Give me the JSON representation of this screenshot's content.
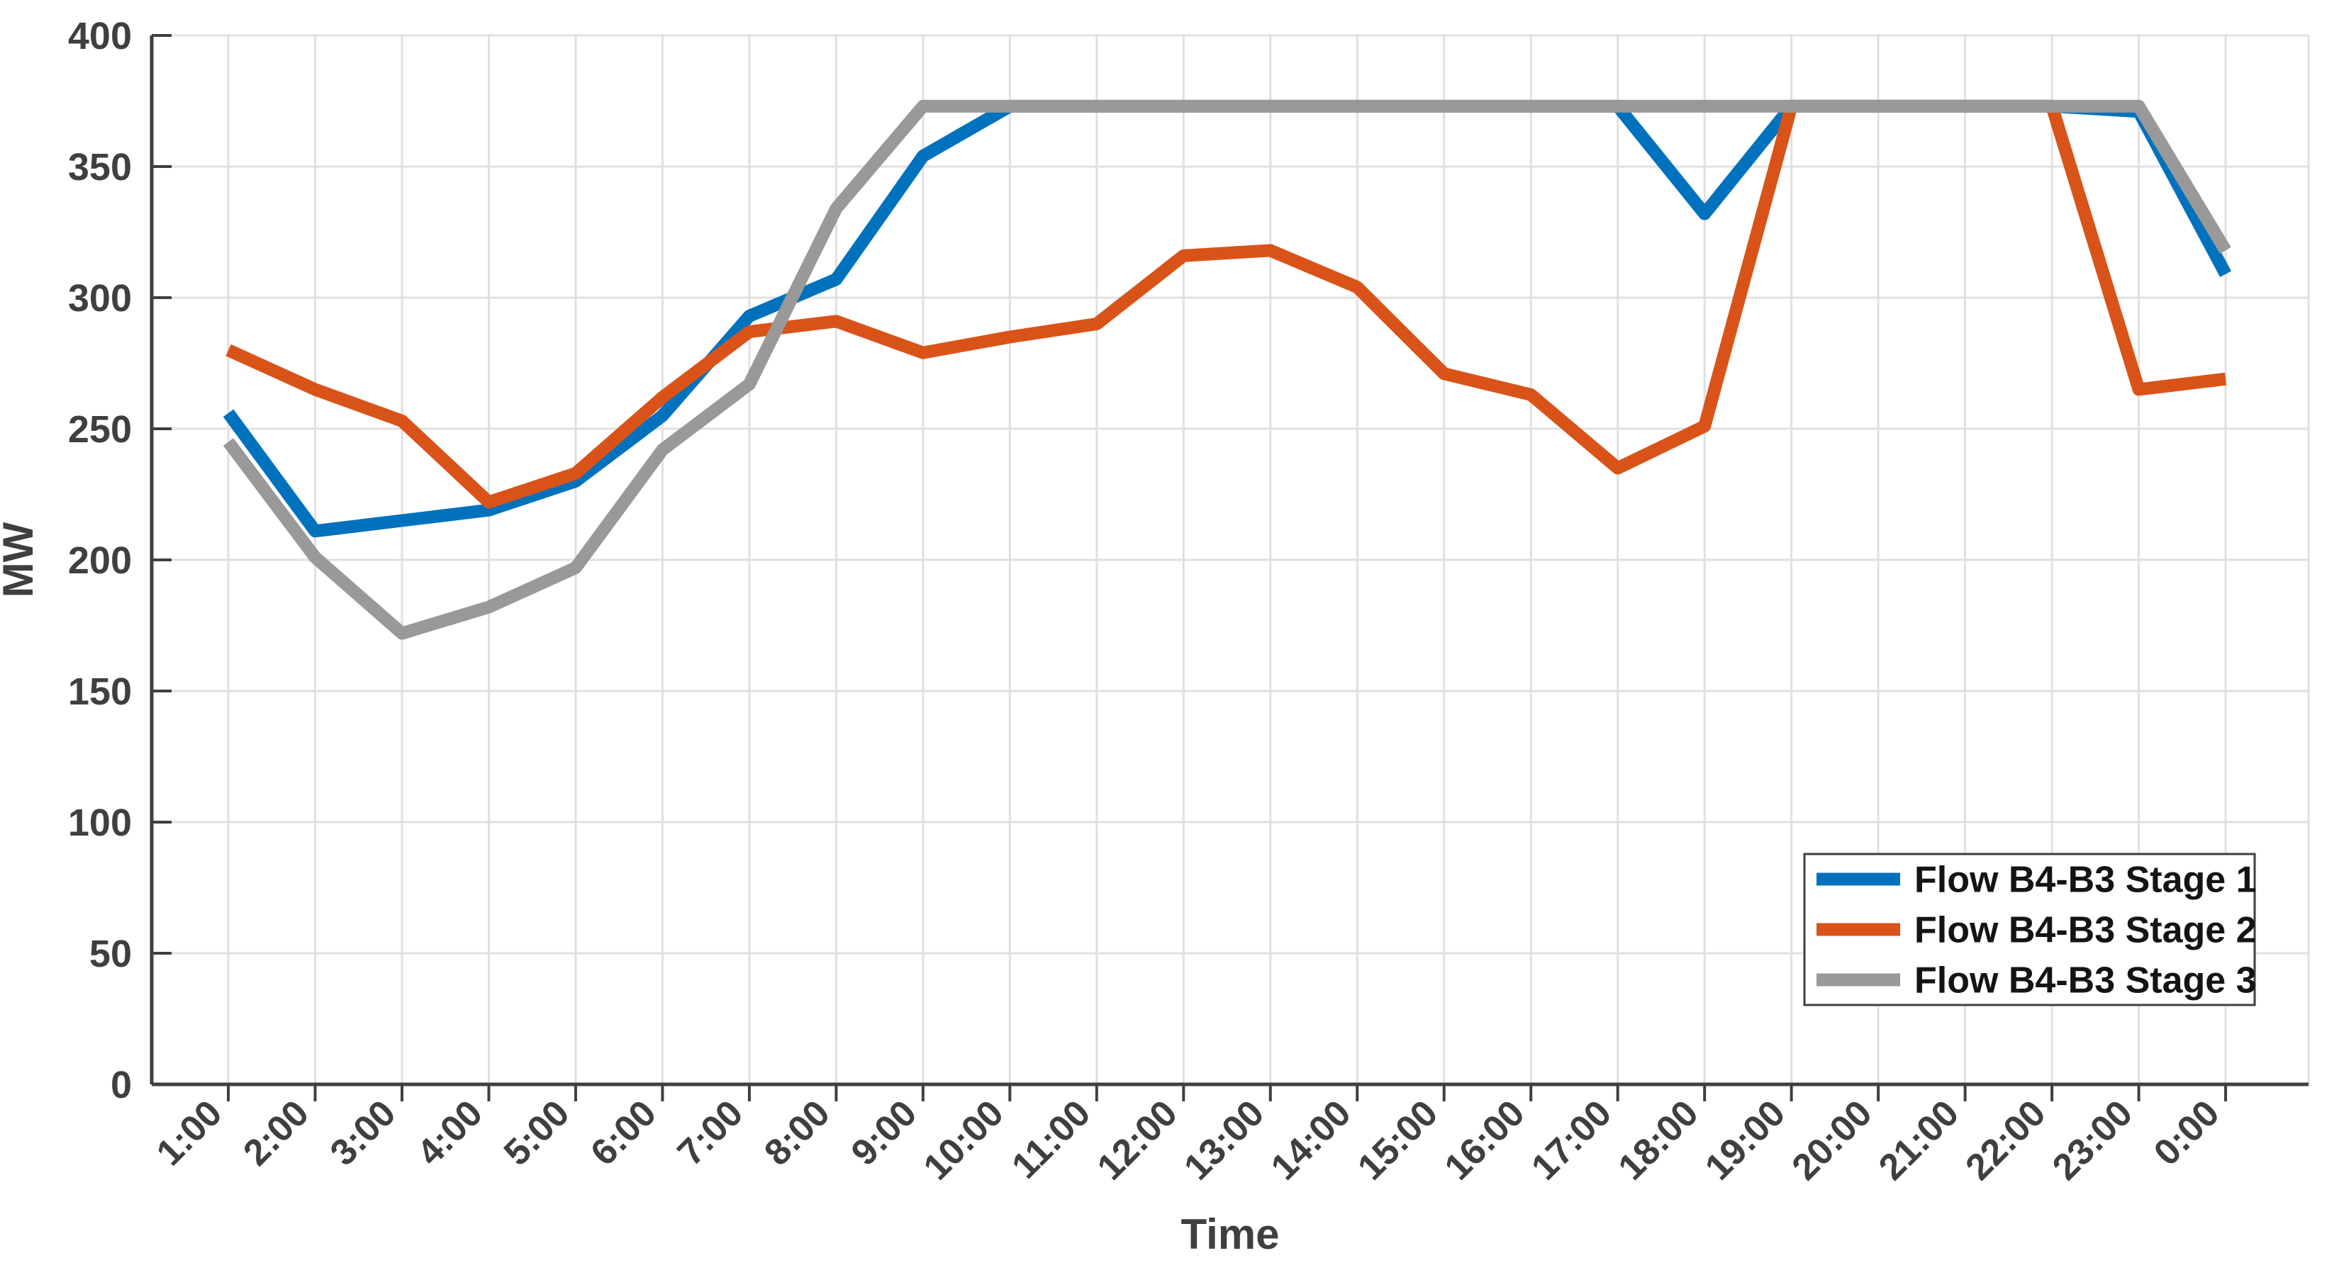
{
  "chart_data": {
    "type": "line",
    "title": "",
    "xlabel": "Time",
    "ylabel": "MW",
    "categories": [
      "1:00",
      "2:00",
      "3:00",
      "4:00",
      "5:00",
      "6:00",
      "7:00",
      "8:00",
      "9:00",
      "10:00",
      "11:00",
      "12:00",
      "13:00",
      "14:00",
      "15:00",
      "16:00",
      "17:00",
      "18:00",
      "19:00",
      "20:00",
      "21:00",
      "22:00",
      "23:00",
      "0:00"
    ],
    "series": [
      {
        "name": "Flow B4-B3 Stage 1",
        "color": "#0072BD",
        "values": [
          256,
          211,
          215,
          219,
          230,
          255,
          293,
          307,
          354,
          373,
          373,
          373,
          373,
          373,
          373,
          373,
          373,
          332,
          373,
          373,
          373,
          373,
          371,
          309
        ]
      },
      {
        "name": "Flow B4-B3 Stage 2",
        "color": "#D95319",
        "values": [
          280,
          265,
          253,
          222,
          233,
          262,
          287,
          291,
          279,
          285,
          290,
          316,
          318,
          304,
          271,
          263,
          235,
          251,
          373,
          373,
          373,
          373,
          265,
          269
        ]
      },
      {
        "name": "Flow B4-B3 Stage 3",
        "color": "#999999",
        "values": [
          245,
          201,
          172,
          182,
          197,
          242,
          267,
          334,
          373,
          373,
          373,
          373,
          373,
          373,
          373,
          373,
          373,
          373,
          373,
          373,
          373,
          373,
          373,
          318
        ]
      }
    ],
    "ylim": [
      0,
      400
    ],
    "ytick_step": 50,
    "grid": true,
    "legend_position": "lower right"
  },
  "style": {
    "grid_color": "#E0E0E0",
    "axis_color": "#3F3F3F",
    "tick_label_color": "#3F3F3F",
    "legend_text_color": "#141414",
    "line_width": 18
  }
}
